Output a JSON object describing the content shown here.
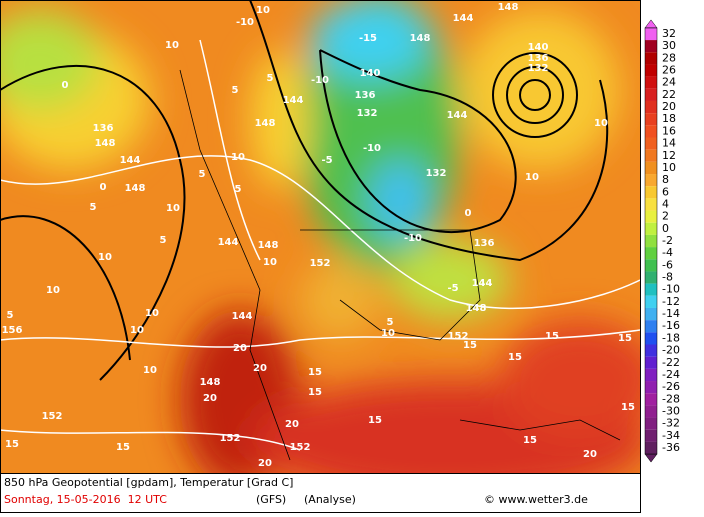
{
  "header": {
    "description": "850 hPa Geopotential [gpdam], Temperatur [Grad C]",
    "date": "Sonntag, 15-05-2016  12 UTC",
    "model": "(GFS)",
    "run": "(Analyse)",
    "credit": "© www.wetter3.de"
  },
  "colorbar": {
    "labels": [
      32,
      30,
      28,
      26,
      24,
      22,
      20,
      18,
      16,
      14,
      12,
      10,
      8,
      6,
      4,
      2,
      0,
      -2,
      -4,
      -6,
      -8,
      -10,
      -12,
      -14,
      -16,
      -18,
      -20,
      -22,
      -24,
      -26,
      -28,
      -30,
      -32,
      -34,
      -36
    ],
    "colors": [
      "#f060f0",
      "#a00020",
      "#b00000",
      "#c00000",
      "#d01010",
      "#d82020",
      "#e03020",
      "#e84020",
      "#f05020",
      "#f06020",
      "#f07820",
      "#f09020",
      "#f8a830",
      "#f8c830",
      "#f8e040",
      "#e8f040",
      "#c0f040",
      "#90e040",
      "#60d040",
      "#40c050",
      "#30b070",
      "#20c0c0",
      "#40d0f0",
      "#40b0f0",
      "#3080f0",
      "#2050f0",
      "#4030e0",
      "#6020d0",
      "#8020c0",
      "#9020b0",
      "#a020a0",
      "#902090",
      "#802080",
      "#702070",
      "#602060"
    ]
  },
  "map_labels": [
    144,
    148,
    10,
    -10,
    -15,
    148,
    10,
    0,
    5,
    5,
    -10,
    144,
    140,
    136,
    132,
    -10,
    140,
    136,
    132,
    144,
    136,
    148,
    144,
    0,
    148,
    5,
    10,
    148,
    10,
    5,
    5,
    -5,
    132,
    0,
    136,
    10,
    10,
    -10,
    144,
    148,
    152,
    10,
    10,
    5,
    10,
    5,
    156,
    10,
    10,
    144,
    20,
    20,
    148,
    20,
    10,
    15,
    15,
    15,
    15,
    15,
    15,
    152,
    -5,
    144,
    148,
    152,
    15,
    15,
    152,
    152,
    20,
    20,
    15,
    15,
    20,
    15,
    10,
    5
  ]
}
